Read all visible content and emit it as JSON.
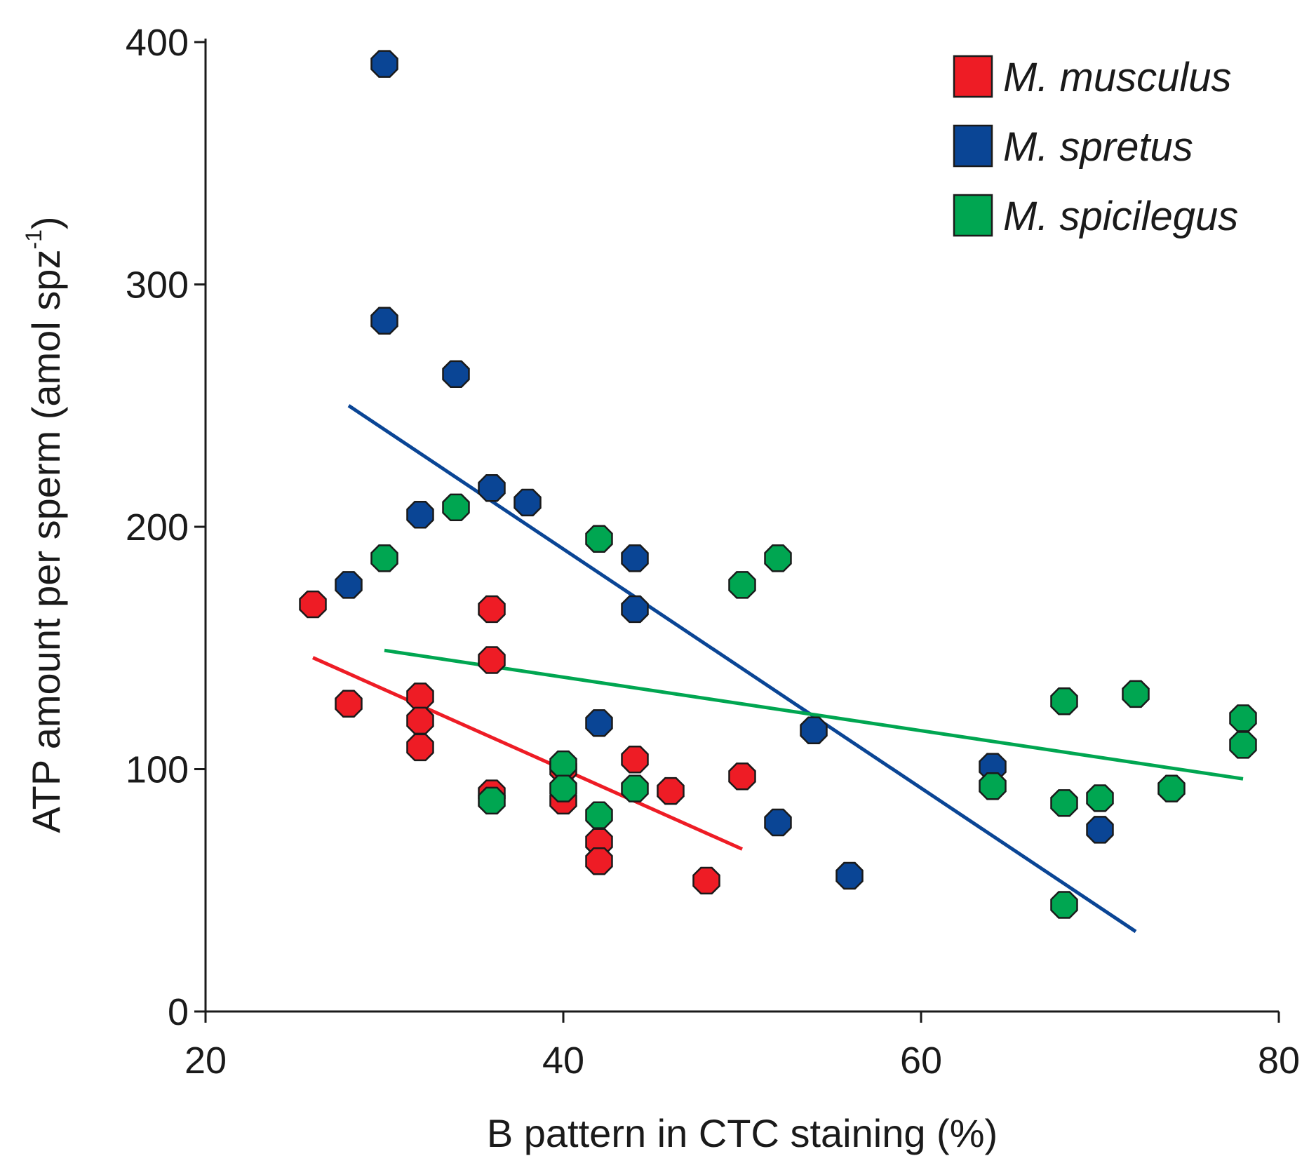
{
  "chart_data": {
    "type": "scatter",
    "title": "",
    "xlabel": "B pattern in CTC staining (%)",
    "ylabel_main": "ATP amount per sperm (amol spz",
    "ylabel_sup": "-1",
    "ylabel_close": ")",
    "xlim": [
      20,
      80
    ],
    "ylim": [
      0,
      400
    ],
    "xticks": [
      "20",
      "40",
      "60",
      "80"
    ],
    "yticks": [
      "0",
      "100",
      "200",
      "300",
      "400"
    ],
    "legend_position": "top-right",
    "series": [
      {
        "name": "M. musculus",
        "color": "#ee1c25",
        "points": [
          [
            26,
            168
          ],
          [
            28,
            127
          ],
          [
            32,
            130
          ],
          [
            32,
            120
          ],
          [
            32,
            109
          ],
          [
            36,
            166
          ],
          [
            36,
            145
          ],
          [
            36,
            90
          ],
          [
            40,
            100
          ],
          [
            40,
            87
          ],
          [
            42,
            70
          ],
          [
            42,
            62
          ],
          [
            44,
            104
          ],
          [
            46,
            91
          ],
          [
            48,
            54
          ],
          [
            50,
            97
          ]
        ],
        "trend": [
          [
            26,
            146
          ],
          [
            50,
            67
          ]
        ]
      },
      {
        "name": "M. spretus",
        "color": "#0a4595",
        "points": [
          [
            30,
            391
          ],
          [
            30,
            285
          ],
          [
            28,
            176
          ],
          [
            32,
            205
          ],
          [
            34,
            263
          ],
          [
            36,
            216
          ],
          [
            38,
            210
          ],
          [
            42,
            119
          ],
          [
            44,
            187
          ],
          [
            44,
            166
          ],
          [
            52,
            78
          ],
          [
            54,
            116
          ],
          [
            56,
            56
          ],
          [
            64,
            101
          ],
          [
            70,
            75
          ]
        ],
        "trend": [
          [
            28,
            250
          ],
          [
            72,
            33
          ]
        ]
      },
      {
        "name": "M. spicilegus",
        "color": "#00a651",
        "points": [
          [
            30,
            187
          ],
          [
            34,
            208
          ],
          [
            36,
            87
          ],
          [
            40,
            102
          ],
          [
            40,
            92
          ],
          [
            42,
            195
          ],
          [
            42,
            81
          ],
          [
            44,
            92
          ],
          [
            50,
            176
          ],
          [
            52,
            187
          ],
          [
            64,
            93
          ],
          [
            68,
            128
          ],
          [
            68,
            86
          ],
          [
            68,
            44
          ],
          [
            70,
            88
          ],
          [
            72,
            131
          ],
          [
            74,
            92
          ],
          [
            78,
            121
          ],
          [
            78,
            110
          ]
        ],
        "trend": [
          [
            30,
            149
          ],
          [
            78,
            96
          ]
        ]
      }
    ]
  }
}
